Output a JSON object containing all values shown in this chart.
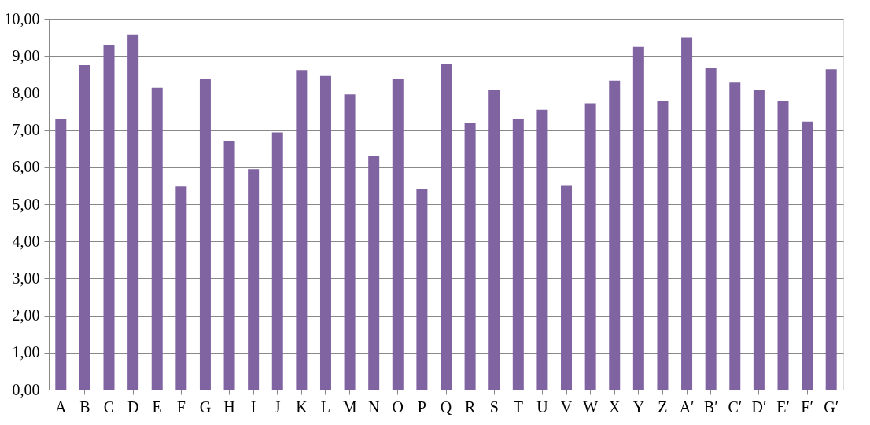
{
  "chart_data": {
    "type": "bar",
    "categories": [
      "A",
      "B",
      "C",
      "D",
      "E",
      "F",
      "G",
      "H",
      "I",
      "J",
      "K",
      "L",
      "M",
      "N",
      "O",
      "P",
      "Q",
      "R",
      "S",
      "T",
      "U",
      "V",
      "W",
      "X",
      "Y",
      "Z",
      "A′",
      "B′",
      "C′",
      "D′",
      "E′",
      "F′",
      "G′"
    ],
    "values": [
      7.3,
      8.75,
      9.3,
      9.58,
      8.14,
      5.48,
      8.38,
      6.7,
      5.95,
      6.94,
      8.62,
      8.46,
      7.96,
      6.31,
      8.38,
      5.4,
      8.77,
      7.18,
      8.09,
      7.31,
      7.55,
      5.5,
      7.72,
      8.33,
      9.24,
      7.78,
      9.5,
      8.67,
      8.28,
      8.07,
      7.78,
      7.23,
      8.64
    ],
    "color": "#8064a2",
    "ylim": [
      0,
      10
    ],
    "yticks": [
      {
        "value": 0,
        "label": "0,00"
      },
      {
        "value": 1,
        "label": "1,00"
      },
      {
        "value": 2,
        "label": "2,00"
      },
      {
        "value": 3,
        "label": "3,00"
      },
      {
        "value": 4,
        "label": "4,00"
      },
      {
        "value": 5,
        "label": "5,00"
      },
      {
        "value": 6,
        "label": "6,00"
      },
      {
        "value": 7,
        "label": "7,00"
      },
      {
        "value": 8,
        "label": "8,00"
      },
      {
        "value": 9,
        "label": "9,00"
      },
      {
        "value": 10,
        "label": "10,00"
      }
    ],
    "grid": "y"
  }
}
